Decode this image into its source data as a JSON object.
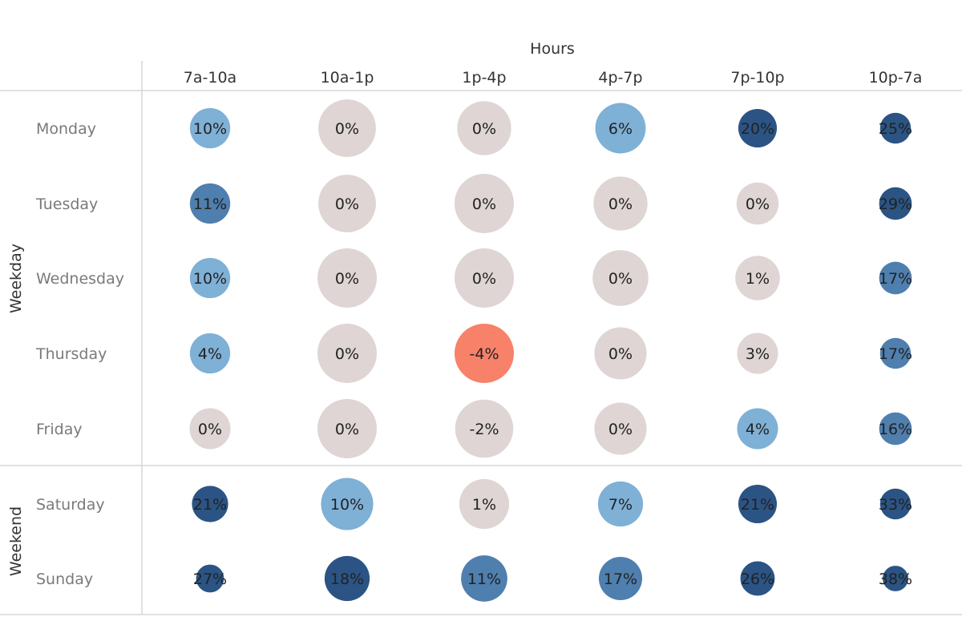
{
  "chart_data": {
    "type": "scatter",
    "column_header": "Hours",
    "columns": [
      "7a-10a",
      "10a-1p",
      "1p-4p",
      "4p-7p",
      "7p-10p",
      "10p-7a"
    ],
    "groups": [
      {
        "name": "Weekday",
        "rows": [
          "Monday",
          "Tuesday",
          "Wednesday",
          "Thursday",
          "Friday"
        ]
      },
      {
        "name": "Weekend",
        "rows": [
          "Saturday",
          "Sunday"
        ]
      }
    ],
    "values": [
      [
        10,
        0,
        0,
        6,
        20,
        25
      ],
      [
        11,
        0,
        0,
        0,
        0,
        29
      ],
      [
        10,
        0,
        0,
        0,
        1,
        17
      ],
      [
        4,
        0,
        -4,
        0,
        3,
        17
      ],
      [
        0,
        0,
        -2,
        0,
        4,
        16
      ],
      [
        21,
        10,
        1,
        7,
        21,
        33
      ],
      [
        27,
        18,
        11,
        17,
        26,
        38
      ]
    ],
    "labels": [
      [
        "10%",
        "0%",
        "0%",
        "6%",
        "20%",
        "25%"
      ],
      [
        "11%",
        "0%",
        "0%",
        "0%",
        "0%",
        "29%"
      ],
      [
        "10%",
        "0%",
        "0%",
        "0%",
        "1%",
        "17%"
      ],
      [
        "4%",
        "0%",
        "-4%",
        "0%",
        "3%",
        "17%"
      ],
      [
        "0%",
        "0%",
        "-2%",
        "0%",
        "4%",
        "16%"
      ],
      [
        "21%",
        "10%",
        "1%",
        "7%",
        "21%",
        "33%"
      ],
      [
        "27%",
        "18%",
        "11%",
        "17%",
        "26%",
        "38%"
      ]
    ],
    "colors": [
      [
        "#7fb0d6",
        "#ded5d4",
        "#ded5d4",
        "#7fb0d6",
        "#2b5484",
        "#2b5484"
      ],
      [
        "#4f7fae",
        "#ded5d4",
        "#ded5d4",
        "#ded5d4",
        "#ded5d4",
        "#2b5484"
      ],
      [
        "#7fb0d6",
        "#ded5d4",
        "#ded5d4",
        "#ded5d4",
        "#ded5d4",
        "#4f7fae"
      ],
      [
        "#7fb0d6",
        "#ded5d4",
        "#f78169",
        "#ded5d4",
        "#ded5d4",
        "#4f7fae"
      ],
      [
        "#ded5d4",
        "#ded5d4",
        "#ded5d4",
        "#ded5d4",
        "#7fb0d6",
        "#4f7fae"
      ],
      [
        "#2b5484",
        "#7fb0d6",
        "#ded5d4",
        "#7fb0d6",
        "#2b5484",
        "#2b5484"
      ],
      [
        "#2b5484",
        "#2b5484",
        "#4f7fae",
        "#4f7fae",
        "#2b5484",
        "#2b5484"
      ]
    ],
    "relative_sizes": [
      [
        0.68,
        0.97,
        0.91,
        0.85,
        0.65,
        0.52
      ],
      [
        0.68,
        0.97,
        1.0,
        0.91,
        0.71,
        0.55
      ],
      [
        0.68,
        1.0,
        1.0,
        0.94,
        0.75,
        0.55
      ],
      [
        0.68,
        1.0,
        1.0,
        0.88,
        0.69,
        0.52
      ],
      [
        0.69,
        1.0,
        0.98,
        0.88,
        0.69,
        0.55
      ],
      [
        0.61,
        0.88,
        0.84,
        0.76,
        0.65,
        0.52
      ],
      [
        0.47,
        0.76,
        0.78,
        0.73,
        0.58,
        0.43
      ]
    ],
    "grid": false
  }
}
